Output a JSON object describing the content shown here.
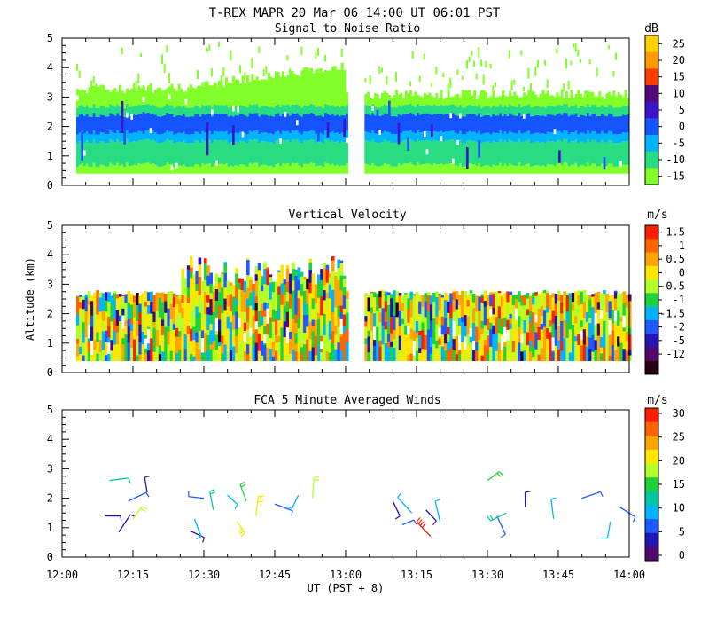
{
  "title": "T-REX   MAPR 20 Mar 06   14:00 UT   06:01   PST",
  "xaxis": {
    "label": "UT  (PST + 8)",
    "ticks": [
      "12:00",
      "12:15",
      "12:30",
      "12:45",
      "13:00",
      "13:15",
      "13:30",
      "13:45",
      "14:00"
    ],
    "range_minutes": [
      0,
      120
    ]
  },
  "ylabel": "Altitude (km)",
  "chart_data": [
    {
      "type": "heatmap",
      "title": "Signal to Noise Ratio",
      "unit": "dB",
      "ylim": [
        0,
        5
      ],
      "yticks": [
        "0",
        "1",
        "2",
        "3",
        "4",
        "5"
      ],
      "colorbar": {
        "labels": [
          "25",
          "20",
          "15",
          "10",
          "5",
          "0",
          "-5",
          "-10",
          "-15"
        ],
        "colors": [
          "#ffd000",
          "#ff9a00",
          "#ff3c00",
          "#500a78",
          "#3c14c8",
          "#1455ff",
          "#00b4ff",
          "#28dc82",
          "#82ff28"
        ]
      },
      "data_gap_minutes": [
        60.5,
        64
      ],
      "layers": [
        {
          "from_km": 0.4,
          "to_km": 0.7,
          "level": "-15"
        },
        {
          "from_km": 0.7,
          "to_km": 1.5,
          "level": "-10"
        },
        {
          "from_km": 1.5,
          "to_km": 1.8,
          "level": "-5"
        },
        {
          "from_km": 1.8,
          "to_km": 2.4,
          "level": "0"
        },
        {
          "from_km": 2.4,
          "to_km": 2.7,
          "level": "-10"
        },
        {
          "from_km": 2.7,
          "to_km": 3.3,
          "level": "-15"
        }
      ]
    },
    {
      "type": "heatmap",
      "title": "Vertical Velocity",
      "unit": "m/s",
      "ylim": [
        0,
        5
      ],
      "yticks": [
        "0",
        "1",
        "2",
        "3",
        "4",
        "5"
      ],
      "colorbar": {
        "labels": [
          "1.5",
          "1",
          "0.5",
          "0",
          "-0.5",
          "-1",
          "-1.5",
          "-2",
          "-5",
          "-12"
        ],
        "colors": [
          "#ff1e00",
          "#ff6400",
          "#ffa500",
          "#ffe600",
          "#b4ff28",
          "#1ed23c",
          "#00b4ff",
          "#1e5aff",
          "#2314b4",
          "#500a6e",
          "#280014"
        ]
      },
      "data_gap_minutes": [
        60.5,
        64
      ],
      "ranges_km": [
        0.4,
        2.7
      ]
    },
    {
      "type": "scatter",
      "title": "FCA 5 Minute Averaged Winds",
      "unit": "m/s",
      "ylim": [
        0,
        5
      ],
      "yticks": [
        "0",
        "1",
        "2",
        "3",
        "4",
        "5"
      ],
      "colorbar": {
        "labels": [
          "30",
          "25",
          "20",
          "15",
          "10",
          "5",
          "0"
        ],
        "colors": [
          "#ff1e00",
          "#ff6400",
          "#ffa500",
          "#ffe600",
          "#b4ff28",
          "#1ed23c",
          "#00c8a0",
          "#00b4ff",
          "#1e5aff",
          "#2314b4",
          "#500a6e"
        ]
      },
      "barbs": [
        {
          "t": 9,
          "alt": 1.4,
          "speed": 3
        },
        {
          "t": 10,
          "alt": 2.6,
          "speed": 11
        },
        {
          "t": 12,
          "alt": 0.85,
          "speed": 2
        },
        {
          "t": 14,
          "alt": 1.9,
          "speed": 6
        },
        {
          "t": 15,
          "alt": 1.3,
          "speed": 18
        },
        {
          "t": 18,
          "alt": 2.2,
          "speed": 4
        },
        {
          "t": 27,
          "alt": 0.9,
          "speed": 3
        },
        {
          "t": 28,
          "alt": 1.3,
          "speed": 8
        },
        {
          "t": 30,
          "alt": 2.0,
          "speed": 5
        },
        {
          "t": 32,
          "alt": 1.6,
          "speed": 12
        },
        {
          "t": 35,
          "alt": 2.1,
          "speed": 10
        },
        {
          "t": 37,
          "alt": 1.2,
          "speed": 22
        },
        {
          "t": 39,
          "alt": 1.9,
          "speed": 14
        },
        {
          "t": 41,
          "alt": 1.4,
          "speed": 20
        },
        {
          "t": 45,
          "alt": 1.8,
          "speed": 5
        },
        {
          "t": 50,
          "alt": 2.1,
          "speed": 8
        },
        {
          "t": 53,
          "alt": 2.0,
          "speed": 17
        },
        {
          "t": 70,
          "alt": 1.9,
          "speed": 3
        },
        {
          "t": 72,
          "alt": 1.1,
          "speed": 6
        },
        {
          "t": 74,
          "alt": 1.5,
          "speed": 10
        },
        {
          "t": 77,
          "alt": 1.6,
          "speed": 4
        },
        {
          "t": 78,
          "alt": 0.7,
          "speed": 30
        },
        {
          "t": 80,
          "alt": 1.2,
          "speed": 9
        },
        {
          "t": 90,
          "alt": 2.6,
          "speed": 15
        },
        {
          "t": 92,
          "alt": 1.4,
          "speed": 7
        },
        {
          "t": 94,
          "alt": 1.5,
          "speed": 13
        },
        {
          "t": 98,
          "alt": 1.7,
          "speed": 4
        },
        {
          "t": 104,
          "alt": 1.3,
          "speed": 10
        },
        {
          "t": 110,
          "alt": 2.0,
          "speed": 5
        },
        {
          "t": 116,
          "alt": 1.2,
          "speed": 8
        },
        {
          "t": 118,
          "alt": 1.7,
          "speed": 6
        }
      ]
    }
  ]
}
